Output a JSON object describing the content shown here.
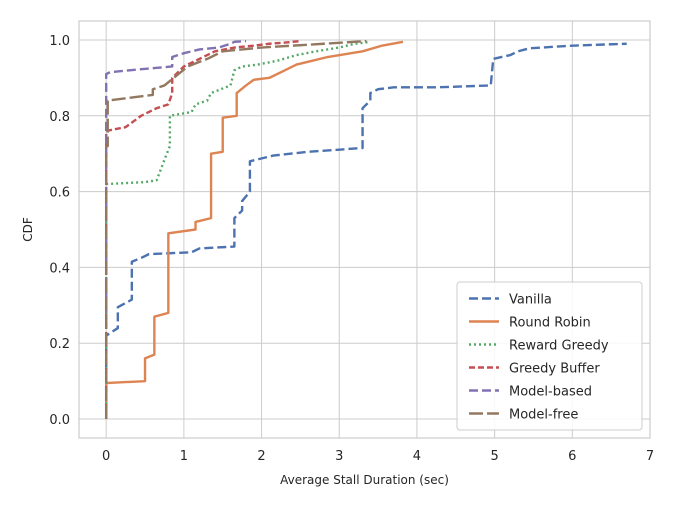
{
  "chart_data": {
    "type": "line",
    "title": "",
    "xlabel": "Average Stall Duration (sec)",
    "ylabel": "CDF",
    "xlim": [
      -0.35,
      7.0
    ],
    "ylim": [
      -0.05,
      1.05
    ],
    "xticks": [
      0,
      1,
      2,
      3,
      4,
      5,
      6,
      7
    ],
    "yticks": [
      0.0,
      0.2,
      0.4,
      0.6,
      0.8,
      1.0
    ],
    "xtick_labels": [
      "0",
      "1",
      "2",
      "3",
      "4",
      "5",
      "6",
      "7"
    ],
    "ytick_labels": [
      "0.0",
      "0.2",
      "0.4",
      "0.6",
      "0.8",
      "1.0"
    ],
    "grid": true,
    "legend_position": "bottom-right",
    "series": [
      {
        "name": "Vanilla",
        "color": "#4c72b0",
        "dash": "dashed",
        "x": [
          0.0,
          0.0,
          0.15,
          0.15,
          0.33,
          0.33,
          0.45,
          0.55,
          1.1,
          1.2,
          1.65,
          1.65,
          1.75,
          1.75,
          1.85,
          1.85,
          2.15,
          2.6,
          3.3,
          3.3,
          3.4,
          3.4,
          3.5,
          3.7,
          4.25,
          4.95,
          4.98,
          4.98,
          5.2,
          5.3,
          5.45,
          6.0,
          6.7
        ],
        "y": [
          0.0,
          0.22,
          0.24,
          0.295,
          0.315,
          0.415,
          0.425,
          0.435,
          0.44,
          0.45,
          0.455,
          0.53,
          0.55,
          0.575,
          0.6,
          0.68,
          0.695,
          0.705,
          0.715,
          0.82,
          0.84,
          0.86,
          0.87,
          0.875,
          0.875,
          0.88,
          0.945,
          0.95,
          0.96,
          0.97,
          0.978,
          0.985,
          0.99
        ]
      },
      {
        "name": "Round Robin",
        "color": "#dd8452",
        "dash": "solid",
        "x": [
          0.0,
          0.0,
          0.5,
          0.5,
          0.62,
          0.62,
          0.8,
          0.8,
          1.15,
          1.15,
          1.35,
          1.35,
          1.5,
          1.5,
          1.68,
          1.68,
          1.8,
          1.9,
          2.1,
          2.3,
          2.45,
          2.65,
          2.85,
          3.3,
          3.55,
          3.82
        ],
        "y": [
          0.0,
          0.095,
          0.1,
          0.16,
          0.17,
          0.27,
          0.28,
          0.49,
          0.5,
          0.52,
          0.53,
          0.7,
          0.705,
          0.795,
          0.8,
          0.86,
          0.88,
          0.895,
          0.9,
          0.92,
          0.935,
          0.945,
          0.955,
          0.97,
          0.985,
          0.995
        ]
      },
      {
        "name": "Reward Greedy",
        "color": "#55a868",
        "dash": "dotted",
        "x": [
          0.0,
          0.0,
          0.5,
          0.65,
          0.78,
          0.82,
          0.82,
          1.1,
          1.15,
          1.3,
          1.35,
          1.6,
          1.65,
          1.75,
          1.95,
          2.2,
          2.45,
          2.7,
          3.0,
          3.2,
          3.4
        ],
        "y": [
          0.0,
          0.62,
          0.625,
          0.63,
          0.7,
          0.72,
          0.8,
          0.81,
          0.83,
          0.84,
          0.86,
          0.88,
          0.92,
          0.93,
          0.935,
          0.945,
          0.96,
          0.97,
          0.98,
          0.99,
          0.995
        ]
      },
      {
        "name": "Greedy Buffer",
        "color": "#c44e52",
        "dash": "dashed-short",
        "x": [
          0.0,
          0.0,
          0.25,
          0.45,
          0.65,
          0.8,
          0.85,
          0.85,
          1.0,
          1.2,
          1.4,
          1.65,
          1.9,
          2.1,
          2.3,
          2.5
        ],
        "y": [
          0.0,
          0.76,
          0.77,
          0.8,
          0.82,
          0.83,
          0.86,
          0.9,
          0.93,
          0.95,
          0.97,
          0.98,
          0.985,
          0.99,
          0.993,
          0.997
        ]
      },
      {
        "name": "Model-based",
        "color": "#8172b2",
        "dash": "dashed",
        "x": [
          0.0,
          0.0,
          0.05,
          0.3,
          0.85,
          0.85,
          1.0,
          1.2,
          1.45,
          1.6,
          1.65,
          1.8
        ],
        "y": [
          0.28,
          0.91,
          0.915,
          0.92,
          0.93,
          0.955,
          0.965,
          0.975,
          0.98,
          0.99,
          0.995,
          0.997
        ]
      },
      {
        "name": "Model-free",
        "color": "#937860",
        "dash": "long-dash",
        "x": [
          0.0,
          0.0,
          0.02,
          0.02,
          0.4,
          0.6,
          0.6,
          0.75,
          1.05,
          1.3,
          1.5,
          1.75,
          2.0,
          2.4,
          2.8,
          3.2,
          3.35
        ],
        "y": [
          0.0,
          0.72,
          0.72,
          0.84,
          0.85,
          0.855,
          0.87,
          0.88,
          0.93,
          0.95,
          0.97,
          0.975,
          0.98,
          0.985,
          0.99,
          0.995,
          0.997
        ]
      }
    ]
  }
}
